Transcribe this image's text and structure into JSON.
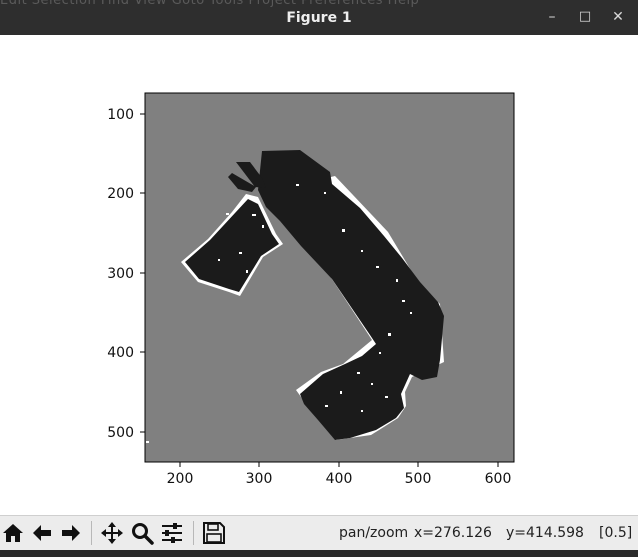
{
  "window": {
    "title": "Figure 1",
    "behind_menu_text": "Edit Selection Find View Goto Tools Project Preferences Help",
    "minimize_glyph": "–",
    "maximize_glyph": "□",
    "close_glyph": "✕"
  },
  "axes": {
    "x_ticks": [
      "200",
      "300",
      "400",
      "500",
      "600"
    ],
    "y_ticks": [
      "100",
      "200",
      "300",
      "400",
      "500"
    ],
    "image_colors": {
      "unknown": "#808080",
      "occupied": "#1b1b1b",
      "free": "#ffffff"
    }
  },
  "toolbar": {
    "buttons": [
      "home-icon",
      "back-arrow-icon",
      "forward-arrow-icon",
      "pan-move-icon",
      "zoom-magnifier-icon",
      "configure-subplots-icon",
      "save-floppy-icon"
    ],
    "mode": "pan/zoom",
    "x_readout": "x=276.126",
    "y_readout": "y=414.598",
    "value_readout": "[0.5]"
  }
}
